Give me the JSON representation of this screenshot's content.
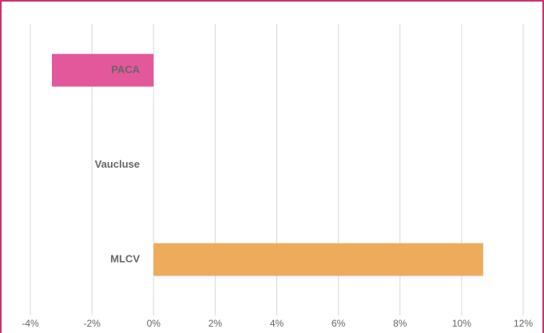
{
  "chart_data": {
    "type": "bar",
    "orientation": "horizontal",
    "categories": [
      "PACA",
      "Vaucluse",
      "MLCV"
    ],
    "values": [
      -3.3,
      0,
      10.7
    ],
    "colors": [
      "#e2589b",
      "#e2589b",
      "#eeab5c"
    ],
    "xlim": [
      -4,
      12
    ],
    "xticks": [
      {
        "value": -4,
        "label": "-4%"
      },
      {
        "value": -2,
        "label": "-2%"
      },
      {
        "value": 0,
        "label": "0%"
      },
      {
        "value": 2,
        "label": "2%"
      },
      {
        "value": 4,
        "label": "4%"
      },
      {
        "value": 6,
        "label": "6%"
      },
      {
        "value": 8,
        "label": "8%"
      },
      {
        "value": 10,
        "label": "10%"
      },
      {
        "value": 12,
        "label": "12%"
      }
    ],
    "grid": true
  }
}
